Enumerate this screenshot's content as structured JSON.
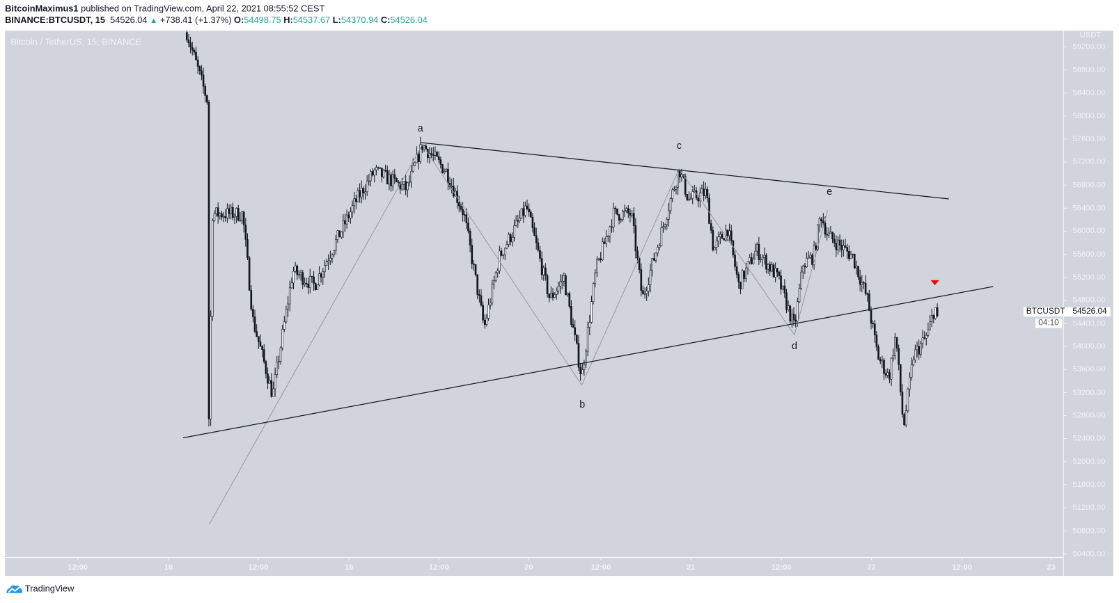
{
  "header": {
    "author": "BitcoinMaximus1",
    "published": "published on TradingView.com, April 22, 2021 08:55:52 CEST",
    "symbol": "BINANCE:BTCUSDT, 15",
    "last": "54526.04",
    "change": "+738.41 (+1.37%)",
    "o_label": "O:",
    "o": "54498.75",
    "h_label": "H:",
    "h": "54537.67",
    "l_label": "L:",
    "l": "54370.94",
    "c_label": "C:",
    "c": "54526.04",
    "up_color": "#26a69a"
  },
  "pane_title": "Bitcoin / TetherUS, 15, BINANCE",
  "currency": "USDT",
  "symbol_tag": "BTCUSDT",
  "price_tag": "54526.04",
  "countdown": "04:10",
  "brand": "TradingView",
  "chart_data": {
    "type": "candlestick",
    "interval": "15",
    "ylim": [
      50400,
      59200
    ],
    "y_ticks": [
      "59200.00",
      "58800.00",
      "58400.00",
      "58000.00",
      "57600.00",
      "57200.00",
      "56800.00",
      "56400.00",
      "56000.00",
      "55600.00",
      "55200.00",
      "54800.00",
      "54400.00",
      "54000.00",
      "53600.00",
      "53200.00",
      "52800.00",
      "52400.00",
      "52000.00",
      "51600.00",
      "51200.00",
      "50800.00",
      "50400.00"
    ],
    "x_ticks": [
      "12:00",
      "18",
      "12:00",
      "19",
      "12:00",
      "20",
      "12:00",
      "21",
      "12:00",
      "22",
      "12:00",
      "23"
    ],
    "grid": false,
    "price_path": [
      [
        "2021-04-18 02:30",
        59450
      ],
      [
        "2021-04-18 05:15",
        58280
      ],
      [
        "2021-04-18 05:35",
        50920
      ],
      [
        "2021-04-18 05:50",
        56300
      ],
      [
        "2021-04-18 10:05",
        56300
      ],
      [
        "2021-04-18 11:30",
        54450
      ],
      [
        "2021-04-18 14:10",
        53150
      ],
      [
        "2021-04-18 16:55",
        55310
      ],
      [
        "2021-04-18 19:50",
        55060
      ],
      [
        "2021-04-19 01:35",
        56550
      ],
      [
        "2021-04-19 04:00",
        57040
      ],
      [
        "2021-04-19 08:25",
        56730
      ],
      [
        "2021-04-19 10:30",
        57500
      ],
      [
        "2021-04-19 13:45",
        57040
      ],
      [
        "2021-04-19 16:10",
        56300
      ],
      [
        "2021-04-19 18:55",
        54320
      ],
      [
        "2021-04-19 21:00",
        55560
      ],
      [
        "2021-04-20 00:40",
        56420
      ],
      [
        "2021-04-20 03:50",
        54820
      ],
      [
        "2021-04-20 05:45",
        55190
      ],
      [
        "2021-04-20 08:10",
        53460
      ],
      [
        "2021-04-20 10:05",
        55310
      ],
      [
        "2021-04-20 12:30",
        56300
      ],
      [
        "2021-04-20 14:55",
        56300
      ],
      [
        "2021-04-20 16:25",
        54820
      ],
      [
        "2021-04-20 18:20",
        55680
      ],
      [
        "2021-04-20 21:25",
        57080
      ],
      [
        "2021-04-20 22:40",
        56550
      ],
      [
        "2021-04-21 01:05",
        56670
      ],
      [
        "2021-04-21 02:05",
        55680
      ],
      [
        "2021-04-21 04:00",
        56050
      ],
      [
        "2021-04-21 05:30",
        55060
      ],
      [
        "2021-04-21 07:55",
        55680
      ],
      [
        "2021-04-21 10:50",
        55190
      ],
      [
        "2021-04-21 13:05",
        54320
      ],
      [
        "2021-04-21 14:15",
        55430
      ],
      [
        "2021-04-21 15:40",
        55560
      ],
      [
        "2021-04-21 16:40",
        56300
      ],
      [
        "2021-04-21 17:35",
        55930
      ],
      [
        "2021-04-21 21:00",
        55560
      ],
      [
        "2021-04-21 23:00",
        54820
      ],
      [
        "2021-04-22 00:25",
        53830
      ],
      [
        "2021-04-22 01:55",
        53460
      ],
      [
        "2021-04-22 02:50",
        54200
      ],
      [
        "2021-04-22 03:55",
        52590
      ],
      [
        "2021-04-22 05:15",
        53830
      ],
      [
        "2021-04-22 07:10",
        54200
      ],
      [
        "2021-04-22 08:10",
        54690
      ],
      [
        "2021-04-22 08:30",
        54526.04
      ]
    ],
    "trendlines": [
      {
        "from": [
          "2021-04-19 10:20",
          57538
        ],
        "to": [
          "2021-04-22 10:05",
          56560
        ],
        "color": "#131722"
      },
      {
        "from": [
          "2021-04-18 02:00",
          52413
        ],
        "to": [
          "2021-04-22 16:05",
          55039
        ],
        "color": "#131722"
      }
    ],
    "wave_path": {
      "color": "#9598a1",
      "points": [
        [
          "2021-04-18 05:35",
          50920
        ],
        [
          "2021-04-19 10:30",
          57500
        ],
        [
          "2021-04-20 08:10",
          53330
        ],
        [
          "2021-04-20 21:25",
          57080
        ],
        [
          "2021-04-21 13:05",
          54200
        ],
        [
          "2021-04-21 17:35",
          56360
        ]
      ]
    },
    "wave_labels": [
      {
        "text": "a",
        "at": [
          "2021-04-19 10:15",
          57730
        ]
      },
      {
        "text": "b",
        "at": [
          "2021-04-20 08:15",
          52940
        ]
      },
      {
        "text": "c",
        "at": [
          "2021-04-20 21:25",
          57430
        ]
      },
      {
        "text": "d",
        "at": [
          "2021-04-21 13:05",
          53950
        ]
      },
      {
        "text": "e",
        "at": [
          "2021-04-21 17:50",
          56630
        ]
      }
    ],
    "marker": {
      "shape": "triangle-down",
      "color": "#ff0000",
      "at": [
        "2021-04-22 08:10",
        55100
      ]
    }
  }
}
